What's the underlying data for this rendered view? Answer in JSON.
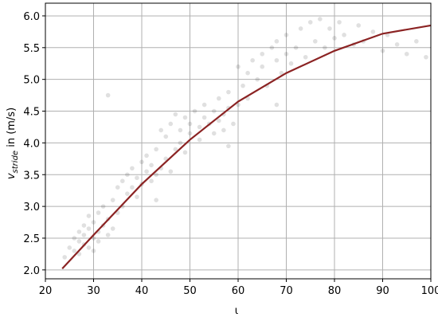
{
  "chart_data": {
    "type": "scatter",
    "xlabel": "ι",
    "ylabel": {
      "symbol": "v",
      "subscript": "stride",
      "unit": " in (m/s)"
    },
    "xlim": [
      20,
      100
    ],
    "ylim": [
      1.86,
      6.2
    ],
    "xticks": [
      20,
      30,
      40,
      50,
      60,
      70,
      80,
      90,
      100
    ],
    "yticks": [
      {
        "value": 2,
        "label": "2.0"
      },
      {
        "value": 2.5,
        "label": "2.5"
      },
      {
        "value": 3,
        "label": "3.0"
      },
      {
        "value": 3.5,
        "label": "3.5"
      },
      {
        "value": 4,
        "label": "4.0"
      },
      {
        "value": 4.5,
        "label": "4.5"
      },
      {
        "value": 5,
        "label": "5.0"
      },
      {
        "value": 5.5,
        "label": "5.5"
      },
      {
        "value": 6,
        "label": "6.0"
      }
    ],
    "grid": true,
    "points": {
      "color": "#000000",
      "x": [
        24,
        25,
        26,
        26,
        27,
        27,
        27,
        28,
        28,
        28,
        29,
        29,
        29,
        30,
        30,
        30,
        31,
        31,
        31,
        32,
        32,
        33,
        33,
        34,
        34,
        35,
        35,
        36,
        36,
        37,
        37,
        38,
        38,
        39,
        39,
        40,
        40,
        41,
        41,
        42,
        42,
        43,
        43,
        44,
        44,
        45,
        45,
        46,
        46,
        47,
        47,
        48,
        48,
        49,
        49,
        50,
        50,
        51,
        52,
        52,
        53,
        53,
        54,
        55,
        55,
        56,
        56,
        57,
        57,
        58,
        58,
        59,
        60,
        60,
        61,
        62,
        62,
        63,
        64,
        65,
        65,
        66,
        67,
        68,
        68,
        69,
        70,
        70,
        71,
        72,
        73,
        74,
        75,
        76,
        77,
        78,
        79,
        80,
        81,
        82,
        84,
        85,
        86,
        88,
        90,
        91,
        93,
        95,
        97,
        99,
        33,
        43,
        58,
        68
      ],
      "values": [
        2.2,
        2.35,
        2.3,
        2.5,
        2.25,
        2.6,
        2.45,
        2.4,
        2.7,
        2.55,
        2.35,
        2.65,
        2.85,
        2.5,
        2.75,
        2.3,
        2.6,
        2.9,
        2.45,
        2.7,
        3.0,
        2.55,
        2.8,
        2.65,
        3.1,
        2.9,
        3.3,
        3.0,
        3.4,
        3.2,
        3.5,
        3.3,
        3.6,
        3.15,
        3.45,
        3.7,
        3.35,
        3.55,
        3.8,
        3.4,
        3.65,
        3.5,
        3.9,
        3.6,
        4.2,
        3.75,
        4.1,
        3.55,
        4.3,
        3.9,
        4.45,
        4.2,
        4.0,
        4.4,
        3.85,
        4.3,
        4.15,
        4.5,
        4.25,
        4.05,
        4.4,
        4.6,
        4.3,
        4.5,
        4.15,
        4.35,
        4.7,
        4.45,
        4.2,
        4.55,
        4.8,
        4.3,
        4.6,
        5.2,
        4.9,
        5.1,
        4.7,
        5.3,
        5.0,
        5.4,
        5.2,
        4.9,
        5.5,
        5.3,
        5.6,
        5.1,
        5.4,
        5.7,
        5.25,
        5.5,
        5.8,
        5.35,
        5.9,
        5.6,
        5.95,
        5.5,
        5.8,
        5.65,
        5.9,
        5.7,
        5.55,
        5.85,
        5.6,
        5.75,
        5.45,
        5.7,
        5.55,
        5.4,
        5.6,
        5.35,
        4.75,
        3.1,
        3.95,
        4.6
      ]
    },
    "fit": {
      "color": "#8b2323",
      "x": [
        23.5,
        30,
        40,
        50,
        60,
        70,
        80,
        90,
        100
      ],
      "values": [
        2.02,
        2.55,
        3.35,
        4.05,
        4.65,
        5.1,
        5.45,
        5.72,
        5.85
      ]
    }
  }
}
